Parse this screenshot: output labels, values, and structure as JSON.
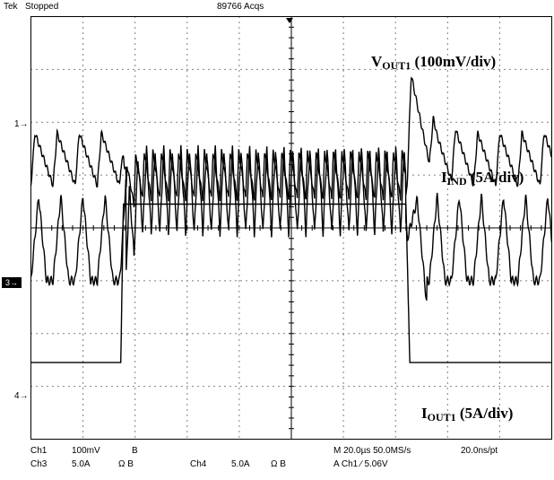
{
  "header": {
    "brand": "Tek",
    "state": "Stopped",
    "acqs": "89766 Acqs"
  },
  "channel_markers": {
    "ch1": "1",
    "ch3": "3",
    "ch4": "4"
  },
  "annotations": {
    "vout": {
      "main": "V",
      "sub": "OUT1",
      "rest": " (100mV/div)"
    },
    "iind": {
      "main": "I",
      "sub": "IND",
      "rest": " (5A/div)"
    },
    "iout": {
      "main": "I",
      "sub": "OUT1",
      "rest": " (5A/div)"
    }
  },
  "footer": {
    "line1": {
      "ch1": "Ch1",
      "ch1_scale": "100mV",
      "ch1_bw": "B",
      "timebase": "M 20.0µs 50.0MS/s",
      "pt": "20.0ns/pt"
    },
    "line2": {
      "ch3": "Ch3",
      "ch3_scale": "5.0A",
      "ch3_bw": "Ω B",
      "ch4": "Ch4",
      "ch4_scale": "5.0A",
      "ch4_bw": "Ω B",
      "trigger": "A Ch1 ∕ 5.06V"
    }
  },
  "colors": {
    "background": "#ffffff",
    "trace": "#000000",
    "grid": "#000000"
  },
  "chart_data": {
    "type": "line",
    "title": "",
    "xlabel": "",
    "ylabel": "",
    "x_divisions": 10,
    "y_divisions": 8,
    "x_unit": "µs",
    "x_range": [
      0,
      200
    ],
    "series": [
      {
        "name": "VOUT1 (100mV/div)",
        "channel": "Ch1",
        "unit": "mV",
        "offset_div": 2.7,
        "x": [
          0,
          34.5,
          36,
          42,
          60,
          90,
          120,
          144,
          146,
          150,
          156,
          170,
          200
        ],
        "y": [
          0,
          0,
          -60,
          -30,
          -30,
          -30,
          -30,
          -30,
          110,
          70,
          15,
          0,
          0
        ],
        "ripple_light_mV": 100,
        "ripple_heavy_mV": 90,
        "ripple_period_light_us": 8.5,
        "ripple_period_heavy_us": 3.3
      },
      {
        "name": "IIND (5A/div)",
        "channel": "Ch3",
        "unit": "A",
        "offset_div": 5.0,
        "x": [
          0,
          34.5,
          38,
          42,
          144,
          148,
          152,
          200
        ],
        "y": [
          0,
          0,
          5,
          8.5,
          8.5,
          4,
          0,
          0
        ],
        "ripple_light_A": 8,
        "ripple_heavy_A": 8,
        "ripple_period_light_us": 8.5,
        "ripple_period_heavy_us": 3.3
      },
      {
        "name": "IOUT1 (5A/div)",
        "channel": "Ch4",
        "unit": "A",
        "offset_div": 6.55,
        "x": [
          0,
          34.5,
          35.5,
          144,
          145.5,
          200
        ],
        "y": [
          0,
          0,
          15,
          15,
          0,
          0
        ]
      }
    ]
  }
}
